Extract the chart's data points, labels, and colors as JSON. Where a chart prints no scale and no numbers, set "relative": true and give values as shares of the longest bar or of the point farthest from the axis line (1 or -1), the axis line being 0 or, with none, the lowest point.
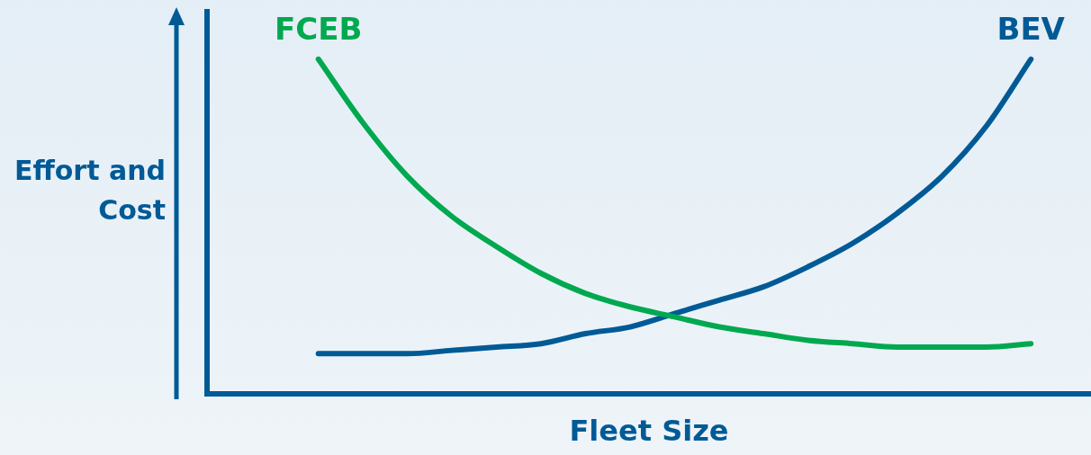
{
  "chart_data": {
    "type": "line",
    "relative": true,
    "xlabel": "Fleet Size",
    "ylabel": "Effort and Cost",
    "legend": false,
    "grid": false,
    "marker": "none",
    "line_style": "solid",
    "categories": [
      null,
      null,
      null,
      null,
      null,
      null,
      null,
      null,
      null,
      null,
      null,
      null,
      null,
      null,
      null,
      null,
      null
    ],
    "series": [
      {
        "name": "FCEB",
        "color": "#00a84f",
        "values": [
          1,
          0.81,
          0.65,
          0.53,
          0.44,
          0.36,
          0.3,
          0.26,
          0.23,
          0.2,
          0.18,
          0.16,
          0.15,
          0.14,
          0.14,
          0.14,
          0.15
        ]
      },
      {
        "name": "BEV",
        "color": "#005a96",
        "values": [
          0.12,
          0.12,
          0.12,
          0.13,
          0.14,
          0.15,
          0.18,
          0.2,
          0.24,
          0.28,
          0.32,
          0.38,
          0.45,
          0.54,
          0.65,
          0.8,
          1
        ]
      }
    ]
  }
}
